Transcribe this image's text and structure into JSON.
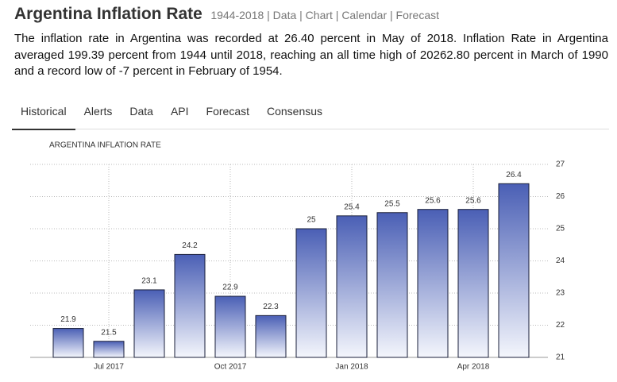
{
  "header": {
    "title": "Argentina Inflation Rate",
    "subtitle": "1944-2018 | Data | Chart | Calendar | Forecast"
  },
  "description": "The inflation rate in Argentina was recorded at 26.40 percent in May of 2018. Inflation Rate in Argentina averaged 199.39 percent from 1944 until 2018, reaching an all time high of 20262.80 percent in March of 1990 and a record low of -7 percent in February of 1954.",
  "tabs": [
    "Historical",
    "Alerts",
    "Data",
    "API",
    "Forecast",
    "Consensus"
  ],
  "chart_data": {
    "type": "bar",
    "title": "ARGENTINA INFLATION RATE",
    "categories": [
      null,
      "Jul 2017",
      null,
      null,
      "Oct 2017",
      null,
      null,
      "Jan 2018",
      null,
      null,
      "Apr 2018",
      null
    ],
    "values": [
      21.9,
      21.5,
      23.1,
      24.2,
      22.9,
      22.3,
      25,
      25.4,
      25.5,
      25.6,
      25.6,
      26.4
    ],
    "color": "#4a5fb5",
    "ylim": [
      21,
      27
    ],
    "yticks": [
      21,
      22,
      23,
      24,
      25,
      26,
      27
    ],
    "grid": true,
    "y_axis_side": "right"
  }
}
